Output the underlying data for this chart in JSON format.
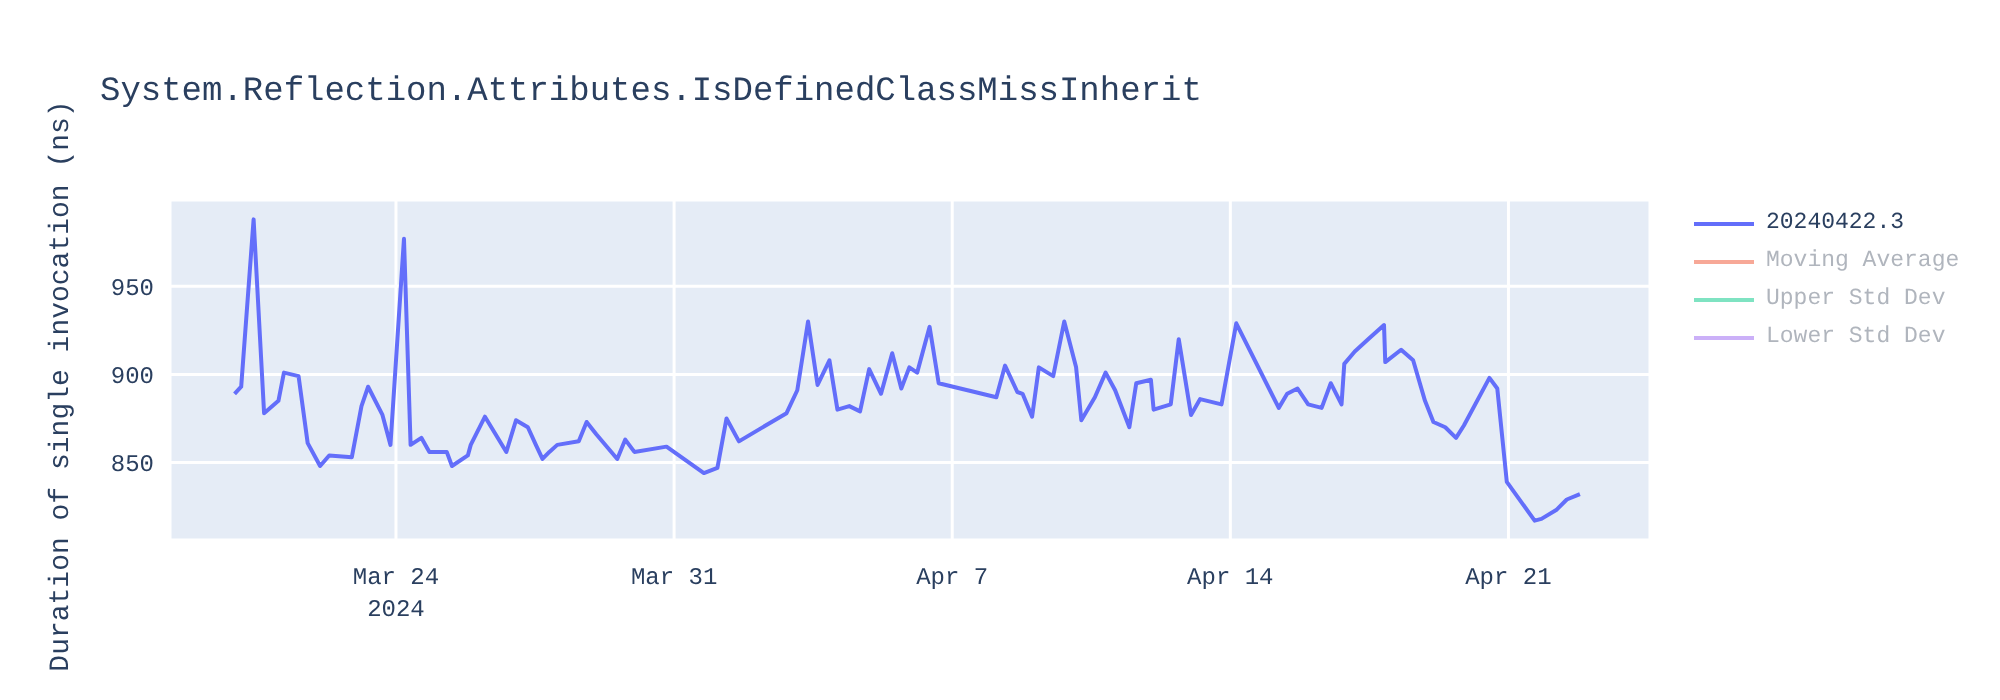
{
  "chart_data": {
    "type": "line",
    "title": "System.Reflection.Attributes.IsDefinedClassMissInherit",
    "ylabel": "Duration of single invocation (ns)",
    "x": [
      "2024-03-19T22:30",
      "2024-03-20T02:30",
      "2024-03-20T10:00",
      "2024-03-20T16:20",
      "2024-03-21T01:00",
      "2024-03-21T04:20",
      "2024-03-21T13:10",
      "2024-03-21T18:40",
      "2024-03-22T02:10",
      "2024-03-22T07:40",
      "2024-03-22T21:20",
      "2024-03-23T03:10",
      "2024-03-23T07:10",
      "2024-03-23T15:50",
      "2024-03-23T20:40",
      "2024-03-24T04:50",
      "2024-03-24T08:50",
      "2024-03-24T15:20",
      "2024-03-24T20:10",
      "2024-03-25T06:40",
      "2024-03-25T09:50",
      "2024-03-25T19:25",
      "2024-03-25T21:10",
      "2024-03-26T05:45",
      "2024-03-26T18:40",
      "2024-03-27T00:30",
      "2024-03-27T07:40",
      "2024-03-27T12:30",
      "2024-03-27T16:30",
      "2024-03-27T20:40",
      "2024-03-28T01:25",
      "2024-03-28T14:25",
      "2024-03-28T19:10",
      "2024-03-29T01:00",
      "2024-03-29T13:40",
      "2024-03-29T18:30",
      "2024-03-30T00:00",
      "2024-03-30T19:25",
      "2024-03-31T18:00",
      "2024-04-01T02:10",
      "2024-04-01T07:40",
      "2024-04-01T15:10",
      "2024-04-02T19:55",
      "2024-04-03T02:25",
      "2024-04-03T08:55",
      "2024-04-03T14:40",
      "2024-04-03T21:50",
      "2024-04-04T02:40",
      "2024-04-04T09:50",
      "2024-04-04T16:20",
      "2024-04-04T21:50",
      "2024-04-05T05:00",
      "2024-04-05T11:45",
      "2024-04-05T17:15",
      "2024-04-05T22:05",
      "2024-04-06T02:50",
      "2024-04-06T10:20",
      "2024-04-06T15:50",
      "2024-04-08T02:40",
      "2024-04-08T07:55",
      "2024-04-08T15:20",
      "2024-04-08T18:30",
      "2024-04-09T00:15",
      "2024-04-09T04:20",
      "2024-04-09T13:00",
      "2024-04-09T19:40",
      "2024-04-10T02:50",
      "2024-04-10T06:00",
      "2024-04-10T14:10",
      "2024-04-10T20:40",
      "2024-04-11T02:25",
      "2024-04-11T11:00",
      "2024-04-11T15:10",
      "2024-04-12T00:00",
      "2024-04-12T01:40",
      "2024-04-12T12:00",
      "2024-04-12T16:50",
      "2024-04-13T00:15",
      "2024-04-13T05:45",
      "2024-04-13T18:40",
      "2024-04-14T03:35",
      "2024-04-15T05:15",
      "2024-04-15T10:20",
      "2024-04-15T16:35",
      "2024-04-15T23:00",
      "2024-04-16T07:10",
      "2024-04-16T12:40",
      "2024-04-16T19:10",
      "2024-04-16T20:50",
      "2024-04-17T03:10",
      "2024-04-17T11:15",
      "2024-04-17T20:50",
      "2024-04-17T21:35",
      "2024-04-18T07:10",
      "2024-04-18T14:25",
      "2024-04-18T21:35",
      "2024-04-19T02:40",
      "2024-04-19T09:50",
      "2024-04-19T16:20",
      "2024-04-19T21:05",
      "2024-04-20T12:30",
      "2024-04-20T17:15",
      "2024-04-20T23:00",
      "2024-04-21T15:50",
      "2024-04-21T19:55",
      "2024-04-22T04:50",
      "2024-04-22T11:15",
      "2024-04-22T19:10"
    ],
    "series": [
      {
        "name": "20240422.3",
        "color": "#636efa",
        "values": [
          889,
          893,
          988,
          878,
          885,
          901,
          899,
          861,
          848,
          854,
          853,
          882,
          893,
          877,
          860,
          977,
          860,
          864,
          856,
          856,
          848,
          854,
          860,
          876,
          856,
          874,
          870,
          860,
          852,
          856,
          860,
          862,
          873,
          866,
          852,
          863,
          856,
          859,
          844,
          847,
          875,
          862,
          878,
          891,
          930,
          894,
          908,
          880,
          882,
          879,
          903,
          889,
          912,
          892,
          904,
          901,
          927,
          895,
          887,
          905,
          890,
          889,
          876,
          904,
          899,
          930,
          904,
          874,
          887,
          901,
          891,
          870,
          895,
          897,
          880,
          883,
          920,
          877,
          886,
          883,
          929,
          881,
          889,
          892,
          883,
          881,
          895,
          883,
          906,
          913,
          920,
          928,
          907,
          914,
          908,
          885,
          873,
          870,
          864,
          871,
          898,
          892,
          839,
          817,
          818,
          823,
          829,
          832
        ]
      },
      {
        "name": "Moving Average",
        "color": "#f7a897",
        "values": [
          null,
          null,
          null,
          null,
          null,
          null,
          null,
          null,
          null,
          null,
          null,
          null,
          null,
          null,
          null,
          null,
          null,
          null,
          null,
          null,
          null,
          null,
          null,
          null,
          null,
          null,
          null,
          null,
          null,
          null,
          null,
          null,
          null,
          null,
          null,
          null,
          null,
          null,
          null,
          null,
          null,
          null,
          null,
          null,
          null,
          null,
          null,
          null,
          null,
          null,
          null,
          null,
          null,
          null,
          null,
          null,
          null,
          null,
          null,
          null,
          null,
          null,
          null,
          null,
          null,
          null,
          null,
          null,
          null,
          null,
          null,
          null,
          null,
          null,
          null,
          null,
          null,
          null,
          null,
          null,
          null,
          null,
          null,
          null,
          null,
          null,
          null,
          null,
          null,
          null,
          null,
          null,
          null,
          null,
          null,
          null,
          null,
          null,
          null,
          null,
          null,
          null,
          null,
          null,
          null,
          null,
          null,
          null
        ]
      },
      {
        "name": "Upper Std Dev",
        "color": "#7fe3c2",
        "values": [
          null,
          null,
          null,
          null,
          null,
          null,
          null,
          null,
          null,
          null,
          null,
          null,
          null,
          null,
          null,
          null,
          null,
          null,
          null,
          null,
          null,
          null,
          null,
          null,
          null,
          null,
          null,
          null,
          null,
          null,
          null,
          null,
          null,
          null,
          null,
          null,
          null,
          null,
          null,
          null,
          null,
          null,
          null,
          null,
          null,
          null,
          null,
          null,
          null,
          null,
          null,
          null,
          null,
          null,
          null,
          null,
          null,
          null,
          null,
          null,
          null,
          null,
          null,
          null,
          null,
          null,
          null,
          null,
          null,
          null,
          null,
          null,
          null,
          null,
          null,
          null,
          null,
          null,
          null,
          null,
          null,
          null,
          null,
          null,
          null,
          null,
          null,
          null,
          null,
          null,
          null,
          null,
          null,
          null,
          null,
          null,
          null,
          null,
          null,
          null,
          null,
          null,
          null,
          null,
          null,
          null,
          null,
          null
        ]
      },
      {
        "name": "Lower Std Dev",
        "color": "#cbb0f8",
        "values": [
          null,
          null,
          null,
          null,
          null,
          null,
          null,
          null,
          null,
          null,
          null,
          null,
          null,
          null,
          null,
          null,
          null,
          null,
          null,
          null,
          null,
          null,
          null,
          null,
          null,
          null,
          null,
          null,
          null,
          null,
          null,
          null,
          null,
          null,
          null,
          null,
          null,
          null,
          null,
          null,
          null,
          null,
          null,
          null,
          null,
          null,
          null,
          null,
          null,
          null,
          null,
          null,
          null,
          null,
          null,
          null,
          null,
          null,
          null,
          null,
          null,
          null,
          null,
          null,
          null,
          null,
          null,
          null,
          null,
          null,
          null,
          null,
          null,
          null,
          null,
          null,
          null,
          null,
          null,
          null,
          null,
          null,
          null,
          null,
          null,
          null,
          null,
          null,
          null,
          null,
          null,
          null,
          null,
          null,
          null,
          null,
          null,
          null,
          null,
          null,
          null,
          null,
          null,
          null,
          null,
          null,
          null,
          null
        ]
      }
    ],
    "xlim": [
      "2024-03-18T07:30",
      "2024-04-24T13:30"
    ],
    "xticks": [
      {
        "value": "2024-03-24",
        "label": "Mar 24\n2024"
      },
      {
        "value": "2024-03-31",
        "label": "Mar 31"
      },
      {
        "value": "2024-04-07",
        "label": "Apr 7"
      },
      {
        "value": "2024-04-14",
        "label": "Apr 14"
      },
      {
        "value": "2024-04-21",
        "label": "Apr 21"
      }
    ],
    "ylim": [
      806,
      999
    ],
    "yticks": [
      850,
      900,
      950
    ],
    "grid": true,
    "legend": "top right",
    "line_style": "solid"
  }
}
